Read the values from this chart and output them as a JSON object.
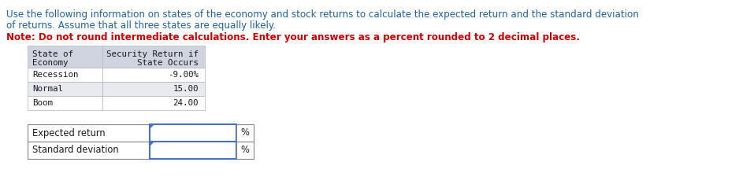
{
  "intro_line1": "Use the following information on states of the economy and stock returns to calculate the expected return and the standard deviation",
  "intro_line2": "of returns. Assume that all three states are equally likely.",
  "note_text": "Note: Do not round intermediate calculations. Enter your answers as a percent rounded to 2 decimal places.",
  "table1_col1_header": [
    "State of",
    "Economy"
  ],
  "table1_col2_header": [
    "Security Return if",
    "State Occurs"
  ],
  "table1_rows": [
    [
      "Recession",
      "-9.00%"
    ],
    [
      "Normal",
      "15.00"
    ],
    [
      "Boom",
      "24.00"
    ]
  ],
  "table2_labels": [
    "Expected return",
    "Standard deviation"
  ],
  "percent_label": "%",
  "bg_color": "#ffffff",
  "header_bg": "#d0d4e0",
  "row_bg_odd": "#e8eaf0",
  "row_bg_even": "#ffffff",
  "font_color_black": "#1a1a1a",
  "font_color_blue_intro": "#2060a0",
  "font_color_red": "#cc0000",
  "border_color_light": "#b0b4c0",
  "input_border_color": "#4472c4",
  "outer_border_color": "#888888"
}
